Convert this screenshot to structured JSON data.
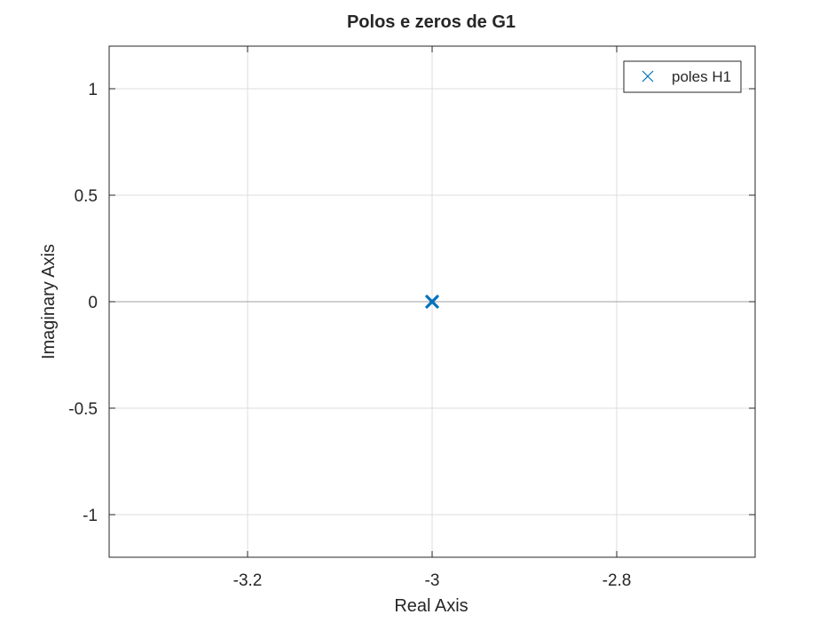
{
  "chart_data": {
    "type": "scatter",
    "title": "Polos e zeros de G1",
    "xlabel": "Real Axis",
    "ylabel": "Imaginary Axis",
    "xlim": [
      -3.35,
      -2.65
    ],
    "ylim": [
      -1.2,
      1.2
    ],
    "xticks": [
      -3.2,
      -3,
      -2.8
    ],
    "xtick_labels": [
      "-3.2",
      "-3",
      "-2.8"
    ],
    "yticks": [
      -1,
      -0.5,
      0,
      0.5,
      1
    ],
    "ytick_labels": [
      "-1",
      "-0.5",
      "0",
      "0.5",
      "1"
    ],
    "grid": true,
    "legend_position": "top-right",
    "series": [
      {
        "name": "poles H1",
        "marker": "x",
        "color": "#0072bd",
        "points": [
          {
            "x": -3,
            "y": 0
          }
        ]
      }
    ]
  }
}
